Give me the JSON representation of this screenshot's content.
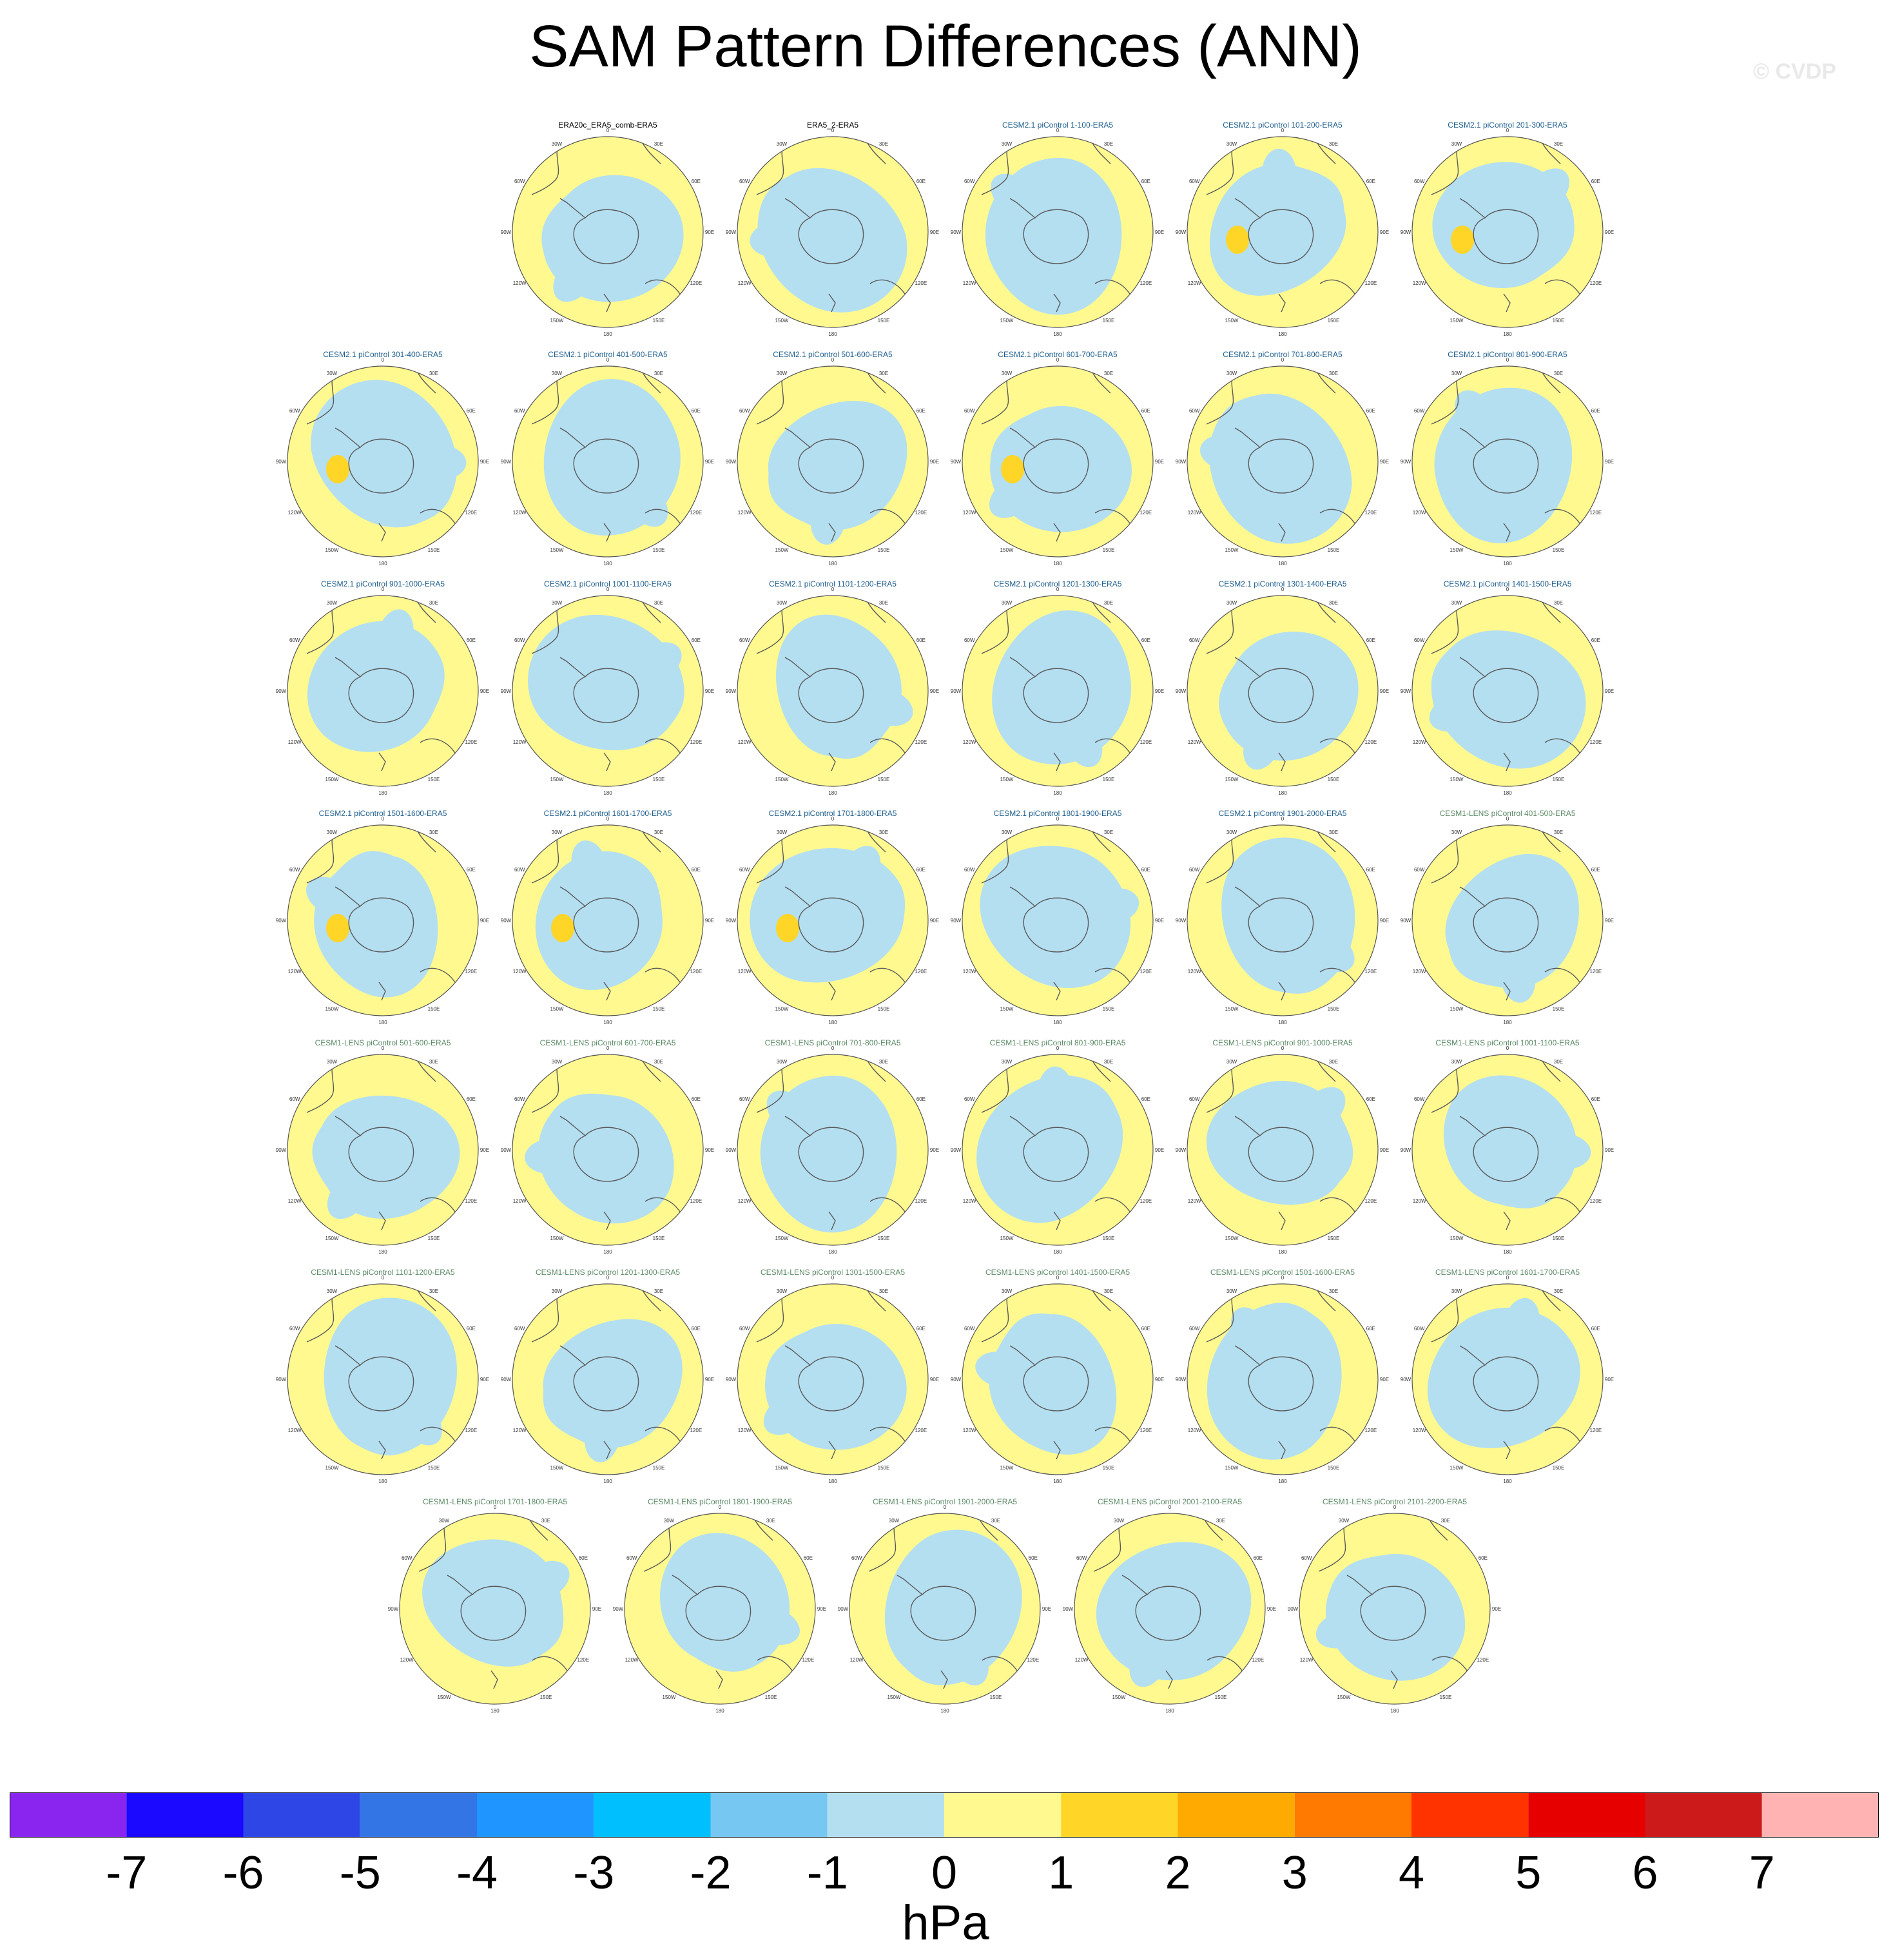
{
  "title": "SAM Pattern Differences (ANN)",
  "watermark": "© CVDP",
  "units": "hPa",
  "map_grid_labels": [
    "0",
    "30E",
    "60E",
    "90E",
    "120E",
    "150E",
    "180",
    "150W",
    "120W",
    "90W",
    "60W",
    "30W"
  ],
  "colors": {
    "title_obs": "#000000",
    "title_cesm2": "#1f5f8f",
    "title_cesm1": "#5b8a66",
    "negative_weak": "#b4dff1",
    "positive_weak": "#fff98f",
    "positive_medium": "#ffd528"
  },
  "colorbar": {
    "ticks": [
      "-7",
      "-6",
      "-5",
      "-4",
      "-3",
      "-2",
      "-1",
      "0",
      "1",
      "2",
      "3",
      "4",
      "5",
      "6",
      "7"
    ],
    "colors": [
      "#8a25f0",
      "#1a08ff",
      "#2e46e6",
      "#3475e6",
      "#1e95ff",
      "#00bfff",
      "#76c8f2",
      "#b4dff1",
      "#fff98f",
      "#ffd528",
      "#ffaa00",
      "#ff7a00",
      "#ff3300",
      "#e60000",
      "#cc1a1a",
      "#ffb3b3"
    ]
  },
  "rows": [
    [
      {
        "label": "ERA20c_ERA5_comb-ERA5",
        "group": "obs",
        "variant": 1,
        "blob": false
      },
      {
        "label": "ERA5_2-ERA5",
        "group": "obs",
        "variant": 2,
        "blob": false
      },
      {
        "label": "CESM2.1 piControl 1-100-ERA5",
        "group": "cesm2",
        "variant": 3,
        "blob": false
      },
      {
        "label": "CESM2.1 piControl 101-200-ERA5",
        "group": "cesm2",
        "variant": 0,
        "blob": true
      },
      {
        "label": "CESM2.1 piControl 201-300-ERA5",
        "group": "cesm2",
        "variant": 1,
        "blob": true
      }
    ],
    [
      {
        "label": "CESM2.1 piControl 301-400-ERA5",
        "group": "cesm2",
        "variant": 2,
        "blob": true
      },
      {
        "label": "CESM2.1 piControl 401-500-ERA5",
        "group": "cesm2",
        "variant": 3,
        "blob": false
      },
      {
        "label": "CESM2.1 piControl 501-600-ERA5",
        "group": "cesm2",
        "variant": 0,
        "blob": false
      },
      {
        "label": "CESM2.1 piControl 601-700-ERA5",
        "group": "cesm2",
        "variant": 1,
        "blob": true
      },
      {
        "label": "CESM2.1 piControl 701-800-ERA5",
        "group": "cesm2",
        "variant": 2,
        "blob": false
      },
      {
        "label": "CESM2.1 piControl 801-900-ERA5",
        "group": "cesm2",
        "variant": 3,
        "blob": false
      }
    ],
    [
      {
        "label": "CESM2.1 piControl 901-1000-ERA5",
        "group": "cesm2",
        "variant": 1,
        "blob": false
      },
      {
        "label": "CESM2.1 piControl 1001-1100-ERA5",
        "group": "cesm2",
        "variant": 2,
        "blob": false
      },
      {
        "label": "CESM2.1 piControl 1101-1200-ERA5",
        "group": "cesm2",
        "variant": 0,
        "blob": false
      },
      {
        "label": "CESM2.1 piControl 1201-1300-ERA5",
        "group": "cesm2",
        "variant": 3,
        "blob": false
      },
      {
        "label": "CESM2.1 piControl 1301-1400-ERA5",
        "group": "cesm2",
        "variant": 1,
        "blob": false
      },
      {
        "label": "CESM2.1 piControl 1401-1500-ERA5",
        "group": "cesm2",
        "variant": 2,
        "blob": false
      }
    ],
    [
      {
        "label": "CESM2.1 piControl 1501-1600-ERA5",
        "group": "cesm2",
        "variant": 0,
        "blob": true
      },
      {
        "label": "CESM2.1 piControl 1601-1700-ERA5",
        "group": "cesm2",
        "variant": 1,
        "blob": true
      },
      {
        "label": "CESM2.1 piControl 1701-1800-ERA5",
        "group": "cesm2",
        "variant": 2,
        "blob": true
      },
      {
        "label": "CESM2.1 piControl 1801-1900-ERA5",
        "group": "cesm2",
        "variant": 3,
        "blob": false
      },
      {
        "label": "CESM2.1 piControl 1901-2000-ERA5",
        "group": "cesm2",
        "variant": 2,
        "blob": false
      },
      {
        "label": "CESM1-LENS piControl 401-500-ERA5",
        "group": "cesm1",
        "variant": 0,
        "blob": false
      }
    ],
    [
      {
        "label": "CESM1-LENS piControl 501-600-ERA5",
        "group": "cesm1",
        "variant": 0,
        "blob": false
      },
      {
        "label": "CESM1-LENS piControl 601-700-ERA5",
        "group": "cesm1",
        "variant": 1,
        "blob": false
      },
      {
        "label": "CESM1-LENS piControl 701-800-ERA5",
        "group": "cesm1",
        "variant": 3,
        "blob": false
      },
      {
        "label": "CESM1-LENS piControl 801-900-ERA5",
        "group": "cesm1",
        "variant": 2,
        "blob": false
      },
      {
        "label": "CESM1-LENS piControl 901-1000-ERA5",
        "group": "cesm1",
        "variant": 0,
        "blob": false
      },
      {
        "label": "CESM1-LENS piControl 1001-1100-ERA5",
        "group": "cesm1",
        "variant": 1,
        "blob": false
      }
    ],
    [
      {
        "label": "CESM1-LENS piControl 1101-1200-ERA5",
        "group": "cesm1",
        "variant": 2,
        "blob": false
      },
      {
        "label": "CESM1-LENS piControl 1201-1300-ERA5",
        "group": "cesm1",
        "variant": 0,
        "blob": false
      },
      {
        "label": "CESM1-LENS piControl 1301-1500-ERA5",
        "group": "cesm1",
        "variant": 1,
        "blob": false
      },
      {
        "label": "CESM1-LENS piControl 1401-1500-ERA5",
        "group": "cesm1",
        "variant": 0,
        "blob": false
      },
      {
        "label": "CESM1-LENS piControl 1501-1600-ERA5",
        "group": "cesm1",
        "variant": 2,
        "blob": false
      },
      {
        "label": "CESM1-LENS piControl 1601-1700-ERA5",
        "group": "cesm1",
        "variant": 3,
        "blob": false
      }
    ],
    [
      {
        "label": "CESM1-LENS piControl 1701-1800-ERA5",
        "group": "cesm1",
        "variant": 0,
        "blob": false
      },
      {
        "label": "CESM1-LENS piControl 1801-1900-ERA5",
        "group": "cesm1",
        "variant": 1,
        "blob": false
      },
      {
        "label": "CESM1-LENS piControl 1901-2000-ERA5",
        "group": "cesm1",
        "variant": 2,
        "blob": false
      },
      {
        "label": "CESM1-LENS piControl 2001-2100-ERA5",
        "group": "cesm1",
        "variant": 3,
        "blob": false
      },
      {
        "label": "CESM1-LENS piControl 2101-2200-ERA5",
        "group": "cesm1",
        "variant": 1,
        "blob": false
      }
    ]
  ]
}
